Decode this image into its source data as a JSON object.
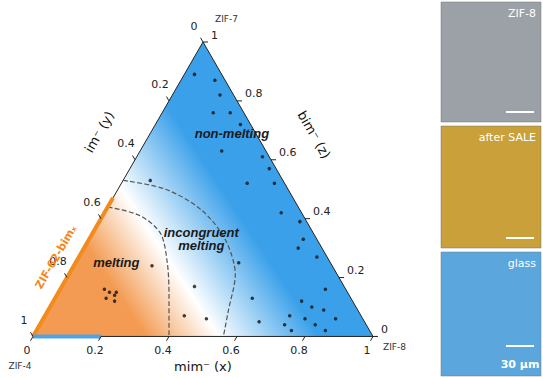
{
  "chart_data": {
    "type": "ternary",
    "vertices": {
      "x": "ZIF-8",
      "y": "ZIF-4",
      "z": "ZIF-7"
    },
    "axes": {
      "x": {
        "label": "mim⁻ (x)",
        "lim": [
          0,
          1
        ],
        "ticks": [
          0,
          0.2,
          0.4,
          0.6,
          0.8,
          1
        ]
      },
      "y": {
        "label": "im⁻ (y)",
        "lim": [
          0,
          1
        ],
        "ticks": [
          0,
          0.2,
          0.4,
          0.6,
          0.8,
          1
        ]
      },
      "z": {
        "label": "bim⁻ (z)",
        "lim": [
          0,
          1
        ],
        "ticks": [
          0,
          0.2,
          0.4,
          0.6,
          0.8,
          1
        ]
      }
    },
    "regions": [
      {
        "label": "melting",
        "color": "#f39b52"
      },
      {
        "label": "incongruent melting",
        "color": "#ffffff"
      },
      {
        "label": "non-melting",
        "color": "#3aa0ea"
      }
    ],
    "boundaries": [
      {
        "line_style": "dashed",
        "values": [
          [
            0,
            0.56,
            0.44
          ],
          [
            0.11,
            0.48,
            0.41
          ],
          [
            0.2,
            0.45,
            0.35
          ],
          [
            0.27,
            0.48,
            0.25
          ],
          [
            0.33,
            0.53,
            0.14
          ],
          [
            0.4,
            0.6,
            0
          ]
        ]
      },
      {
        "line_style": "dashed",
        "values": [
          [
            0,
            0.47,
            0.53
          ],
          [
            0.14,
            0.36,
            0.5
          ],
          [
            0.28,
            0.29,
            0.43
          ],
          [
            0.4,
            0.27,
            0.33
          ],
          [
            0.49,
            0.3,
            0.21
          ],
          [
            0.53,
            0.38,
            0.09
          ],
          [
            0.56,
            0.44,
            0
          ]
        ]
      }
    ],
    "lines": [
      {
        "label": "ZIF-62-bimₓ",
        "color": "#f28a1c",
        "values": [
          [
            0,
            1,
            0
          ],
          [
            0,
            0.53,
            0.47
          ]
        ]
      },
      {
        "color": "#4da3e6",
        "values": [
          [
            0,
            1,
            0
          ],
          [
            0.2,
            0.8,
            0
          ]
        ]
      }
    ],
    "points": {
      "marker": "circle",
      "color": "#111111",
      "values": [
        [
          0.03,
          0.08,
          0.89
        ],
        [
          0.1,
          0.03,
          0.87
        ],
        [
          0.14,
          0.04,
          0.82
        ],
        [
          0.2,
          0.04,
          0.76
        ],
        [
          0.15,
          0.09,
          0.76
        ],
        [
          0.25,
          0.03,
          0.72
        ],
        [
          0.24,
          0.13,
          0.63
        ],
        [
          0.37,
          0.02,
          0.61
        ],
        [
          0.37,
          0.11,
          0.52
        ],
        [
          0.45,
          0.03,
          0.52
        ],
        [
          0.41,
          0.02,
          0.57
        ],
        [
          0.08,
          0.39,
          0.53
        ],
        [
          0.59,
          0.02,
          0.39
        ],
        [
          0.52,
          0.06,
          0.42
        ],
        [
          0.63,
          0.07,
          0.3
        ],
        [
          0.7,
          0.03,
          0.27
        ],
        [
          0.63,
          0.04,
          0.33
        ],
        [
          0.78,
          0.06,
          0.16
        ],
        [
          0.73,
          0.15,
          0.12
        ],
        [
          0.77,
          0.13,
          0.1
        ],
        [
          0.81,
          0.1,
          0.09
        ],
        [
          0.72,
          0.21,
          0.07
        ],
        [
          0.77,
          0.17,
          0.06
        ],
        [
          0.85,
          0.13,
          0.02
        ],
        [
          0.81,
          0.15,
          0.04
        ],
        [
          0.72,
          0.24,
          0.04
        ],
        [
          0.75,
          0.23,
          0.02
        ],
        [
          0.64,
          0.31,
          0.05
        ],
        [
          0.58,
          0.29,
          0.13
        ],
        [
          0.13,
          0.71,
          0.16
        ],
        [
          0.15,
          0.7,
          0.15
        ],
        [
          0.17,
          0.69,
          0.14
        ],
        [
          0.17,
          0.68,
          0.15
        ],
        [
          0.15,
          0.72,
          0.13
        ],
        [
          0.18,
          0.7,
          0.12
        ],
        [
          0.23,
          0.53,
          0.24
        ],
        [
          0.41,
          0.52,
          0.07
        ],
        [
          0.48,
          0.46,
          0.06
        ],
        [
          0.39,
          0.44,
          0.17
        ],
        [
          0.48,
          0.27,
          0.25
        ],
        [
          0.86,
          0.08,
          0.06
        ]
      ]
    },
    "panels": [
      {
        "label": "ZIF-8",
        "color": "#9ba1a6"
      },
      {
        "label": "after SALE",
        "color": "#c9a03a"
      },
      {
        "label": "glass",
        "color": "#5ba6dc"
      }
    ],
    "scale_bar": "30 µm"
  }
}
